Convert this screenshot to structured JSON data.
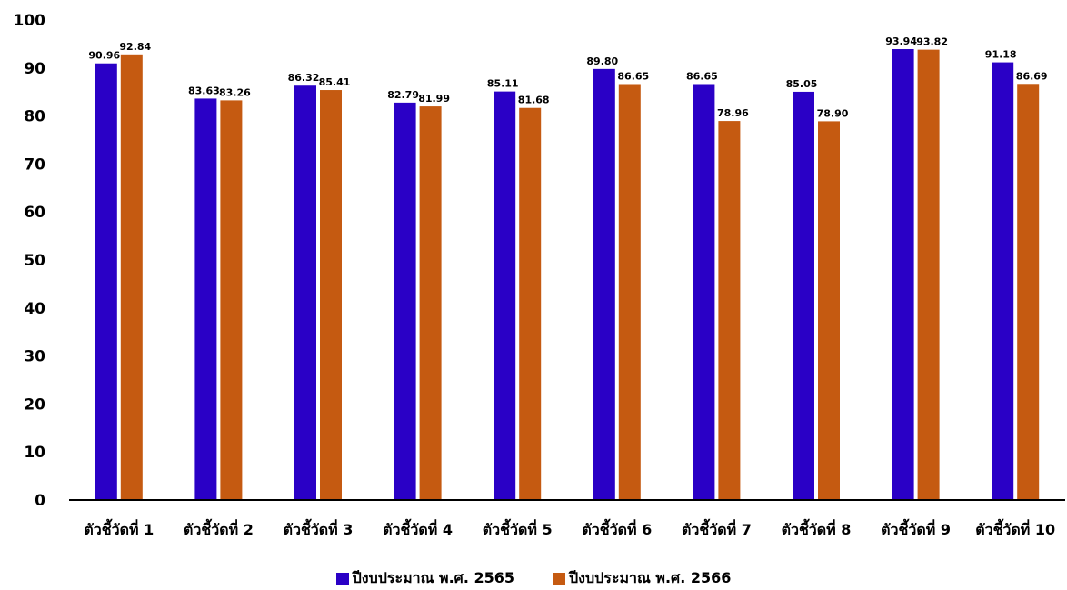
{
  "chart_data": {
    "type": "bar",
    "title": "",
    "xlabel": "",
    "ylabel": "",
    "ylim": [
      0,
      100
    ],
    "yticks": [
      0,
      10,
      20,
      30,
      40,
      50,
      60,
      70,
      80,
      90,
      100
    ],
    "grid": false,
    "legend_position": "bottom",
    "categories": [
      "ตัวชี้วัดที่ 1",
      "ตัวชี้วัดที่ 2",
      "ตัวชี้วัดที่ 3",
      "ตัวชี้วัดที่ 4",
      "ตัวชี้วัดที่ 5",
      "ตัวชี้วัดที่ 6",
      "ตัวชี้วัดที่ 7",
      "ตัวชี้วัดที่ 8",
      "ตัวชี้วัดที่ 9",
      "ตัวชี้วัดที่ 10"
    ],
    "series": [
      {
        "name": "ปีงบประมาณ พ.ศ. 2565",
        "color": "#2A00C6",
        "values": [
          90.96,
          83.63,
          86.32,
          82.79,
          85.11,
          89.8,
          86.65,
          85.05,
          93.94,
          91.18
        ],
        "labels": [
          "90.96",
          "83.63",
          "86.32",
          "82.79",
          "85.11",
          "89.80",
          "86.65",
          "85.05",
          "93.94",
          "91.18"
        ]
      },
      {
        "name": "ปีงบประมาณ พ.ศ. 2566",
        "color": "#C55A11",
        "values": [
          92.84,
          83.26,
          85.41,
          81.99,
          81.68,
          86.65,
          78.96,
          78.9,
          93.82,
          86.69
        ],
        "labels": [
          "92.84",
          "83.26",
          "85.41",
          "81.99",
          "81.68",
          "86.65",
          "78.96",
          "78.90",
          "93.82",
          "86.69"
        ]
      }
    ]
  }
}
